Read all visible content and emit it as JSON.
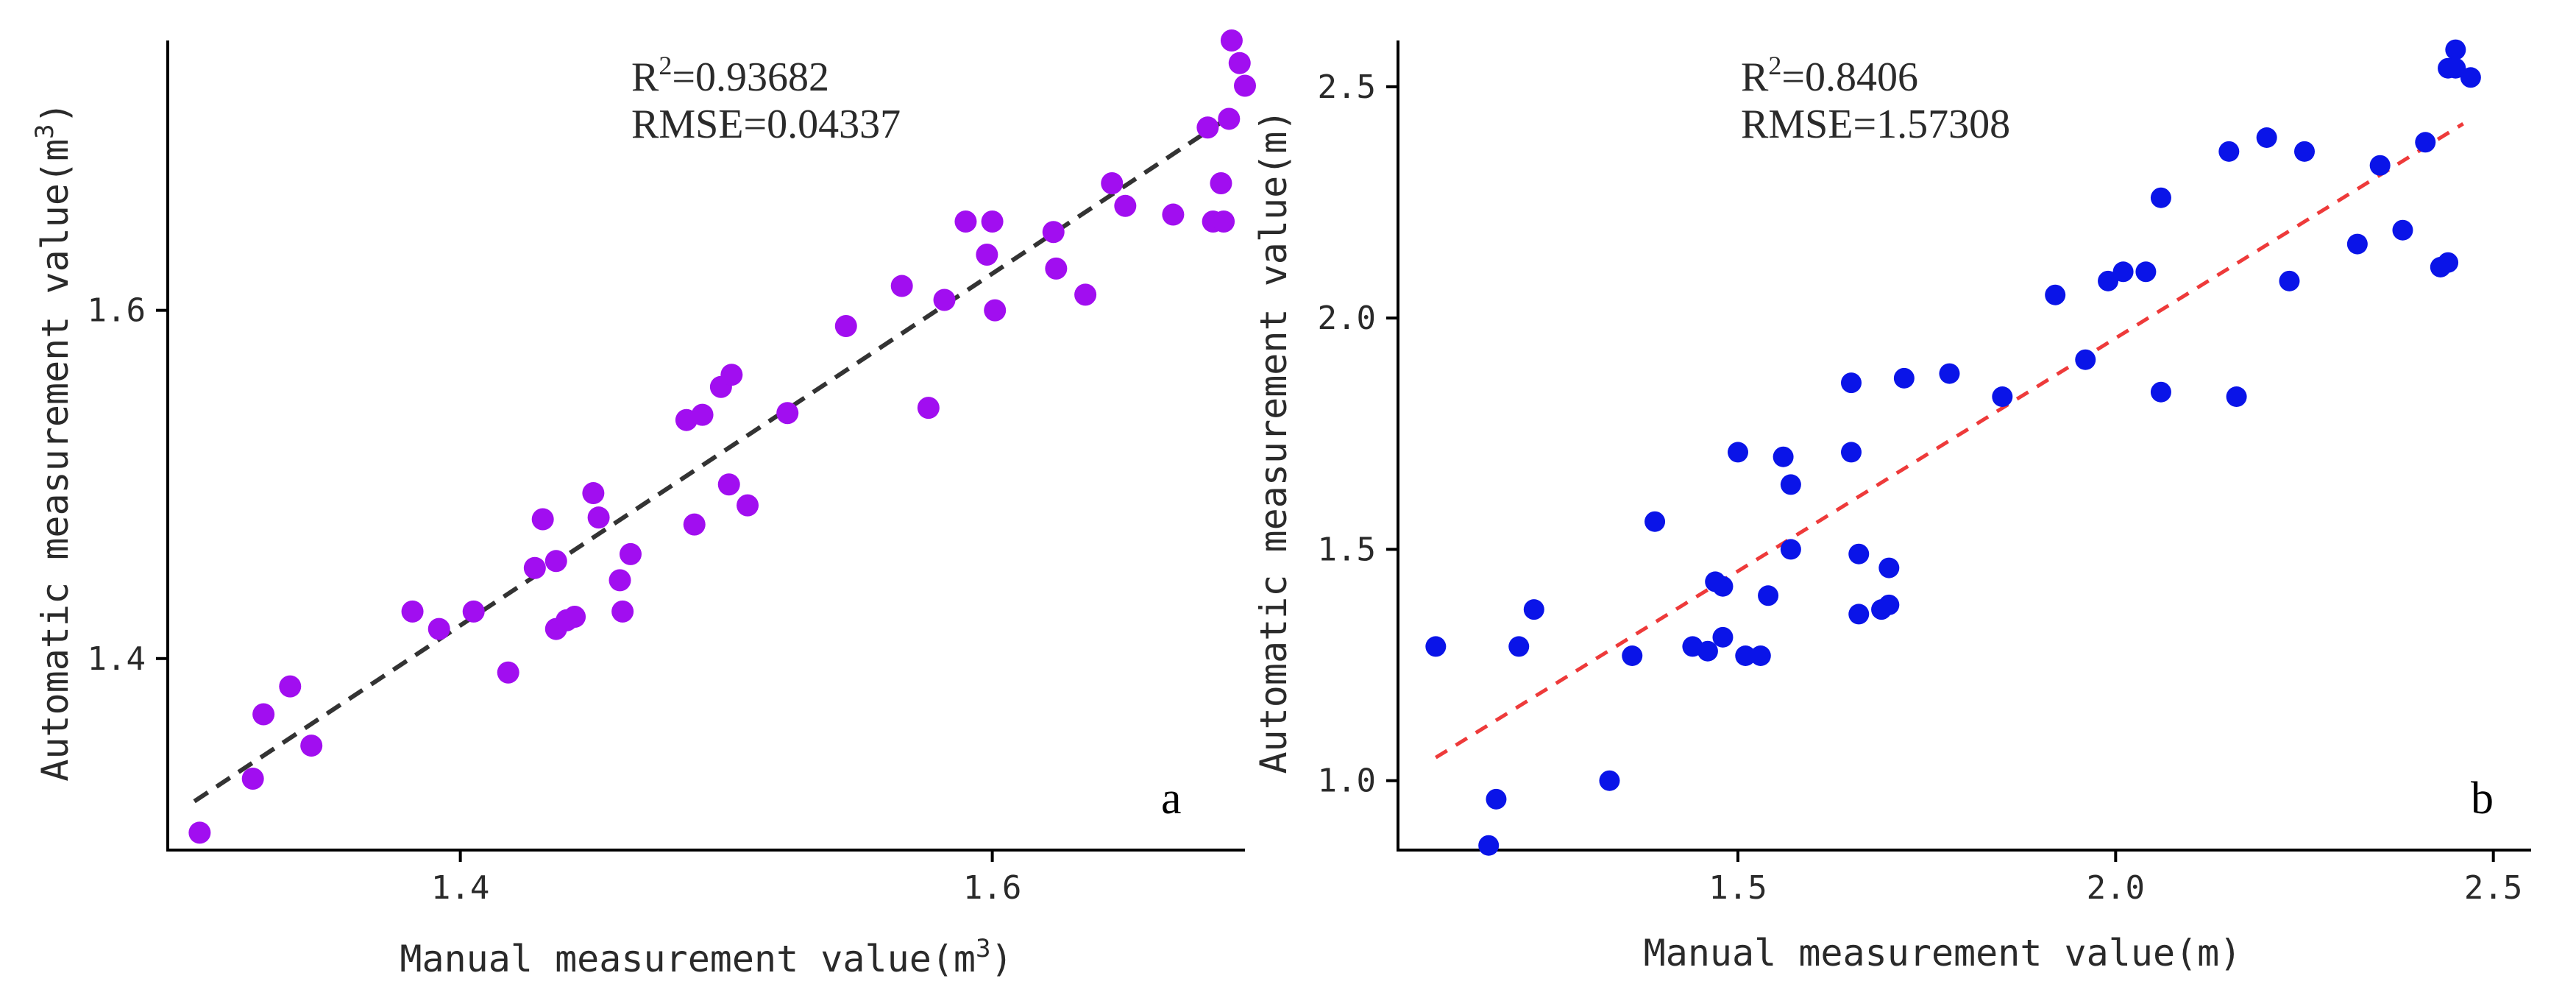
{
  "chart_data": [
    {
      "type": "scatter",
      "panel_label": "a",
      "xlabel_prefix": "Manual measurement value(m",
      "xlabel_sup": "3",
      "xlabel_suffix": ")",
      "ylabel_prefix": "Automatic measurement value(m",
      "ylabel_sup": "3",
      "ylabel_suffix": ")",
      "r2_prefix": "R",
      "r2_sup": "2",
      "r2_value": "=0.93682",
      "rmse_text": "RMSE=0.04337",
      "xlim": [
        1.29,
        1.695
      ],
      "ylim": [
        1.29,
        1.755
      ],
      "xticks": [
        1.4,
        1.6
      ],
      "xtick_labels": [
        "1.4",
        "1.6"
      ],
      "yticks": [
        1.4,
        1.6
      ],
      "ytick_labels": [
        "1.4",
        "1.6"
      ],
      "point_color": "#a10ef0",
      "fit_color": "#333333",
      "fit_line": {
        "x": [
          1.3,
          1.69
        ],
        "y": [
          1.318,
          1.712
        ]
      },
      "points": {
        "x": [
          1.302,
          1.322,
          1.326,
          1.336,
          1.344,
          1.382,
          1.392,
          1.405,
          1.418,
          1.428,
          1.431,
          1.436,
          1.436,
          1.44,
          1.443,
          1.45,
          1.452,
          1.46,
          1.461,
          1.464,
          1.485,
          1.488,
          1.491,
          1.498,
          1.502,
          1.501,
          1.508,
          1.523,
          1.545,
          1.566,
          1.576,
          1.582,
          1.59,
          1.598,
          1.601,
          1.6,
          1.623,
          1.624,
          1.635,
          1.645,
          1.65,
          1.668,
          1.683,
          1.687,
          1.681,
          1.686,
          1.689,
          1.69,
          1.693,
          1.695
        ],
        "y": [
          1.3,
          1.331,
          1.368,
          1.384,
          1.35,
          1.427,
          1.417,
          1.427,
          1.392,
          1.452,
          1.48,
          1.456,
          1.417,
          1.422,
          1.424,
          1.495,
          1.481,
          1.445,
          1.427,
          1.46,
          1.537,
          1.477,
          1.54,
          1.556,
          1.563,
          1.5,
          1.488,
          1.541,
          1.591,
          1.614,
          1.544,
          1.606,
          1.651,
          1.632,
          1.6,
          1.651,
          1.645,
          1.624,
          1.609,
          1.673,
          1.66,
          1.655,
          1.651,
          1.651,
          1.705,
          1.673,
          1.71,
          1.755,
          1.742,
          1.729
        ]
      }
    },
    {
      "type": "scatter",
      "panel_label": "b",
      "xlabel": "Manual measurement value(m)",
      "ylabel": "Automatic measurement value(m)",
      "r2_prefix": "R",
      "r2_sup": "2",
      "r2_value": "=0.8406",
      "rmse_text": "RMSE=1.57308",
      "xlim": [
        1.05,
        2.55
      ],
      "ylim": [
        0.85,
        2.6
      ],
      "xticks": [
        1.5,
        2.0,
        2.5
      ],
      "xtick_labels": [
        "1.5",
        "2.0",
        "2.5"
      ],
      "yticks": [
        1.0,
        1.5,
        2.0,
        2.5
      ],
      "ytick_labels": [
        "1.0",
        "1.5",
        "2.0",
        "2.5"
      ],
      "point_color": "#0a14e8",
      "fit_color": "#ee3a3a",
      "fit_line": {
        "x": [
          1.1,
          2.46
        ],
        "y": [
          1.05,
          2.42
        ]
      },
      "points": {
        "x": [
          1.1,
          1.17,
          1.18,
          1.21,
          1.23,
          1.33,
          1.36,
          1.39,
          1.44,
          1.46,
          1.47,
          1.48,
          1.48,
          1.5,
          1.51,
          1.53,
          1.54,
          1.56,
          1.57,
          1.57,
          1.65,
          1.65,
          1.66,
          1.66,
          1.69,
          1.7,
          1.7,
          1.72,
          1.78,
          1.85,
          1.92,
          1.96,
          1.99,
          2.01,
          2.04,
          2.06,
          2.06,
          2.15,
          2.16,
          2.2,
          2.23,
          2.25,
          2.32,
          2.35,
          2.38,
          2.41,
          2.43,
          2.44,
          2.45,
          2.44,
          2.45,
          2.47
        ],
        "y": [
          1.29,
          0.86,
          0.96,
          1.29,
          1.37,
          1.0,
          1.27,
          1.56,
          1.29,
          1.28,
          1.43,
          1.31,
          1.42,
          1.71,
          1.27,
          1.27,
          1.4,
          1.7,
          1.64,
          1.5,
          1.86,
          1.71,
          1.49,
          1.36,
          1.37,
          1.46,
          1.38,
          1.87,
          1.88,
          1.83,
          2.05,
          1.91,
          2.08,
          2.1,
          2.1,
          2.26,
          1.84,
          2.36,
          1.83,
          2.39,
          2.08,
          2.36,
          2.16,
          2.33,
          2.19,
          2.38,
          2.11,
          2.12,
          2.58,
          2.54,
          2.54,
          2.52
        ]
      }
    }
  ]
}
